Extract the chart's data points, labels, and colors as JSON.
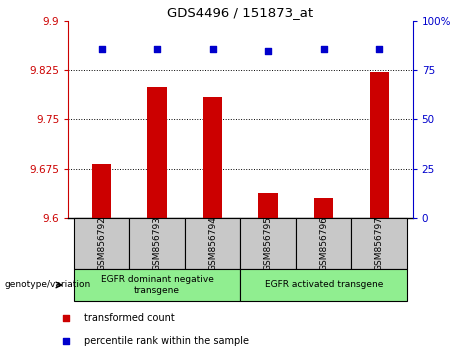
{
  "title": "GDS4496 / 151873_at",
  "samples": [
    "GSM856792",
    "GSM856793",
    "GSM856794",
    "GSM856795",
    "GSM856796",
    "GSM856797"
  ],
  "bar_values": [
    9.682,
    9.8,
    9.785,
    9.638,
    9.63,
    9.823
  ],
  "percentile_values": [
    86,
    86,
    86,
    85,
    86,
    86
  ],
  "ylim_left": [
    9.6,
    9.9
  ],
  "ylim_right": [
    0,
    100
  ],
  "yticks_left": [
    9.6,
    9.675,
    9.75,
    9.825,
    9.9
  ],
  "ytick_labels_left": [
    "9.6",
    "9.675",
    "9.75",
    "9.825",
    "9.9"
  ],
  "yticks_right": [
    0,
    25,
    50,
    75,
    100
  ],
  "ytick_labels_right": [
    "0",
    "25",
    "50",
    "75",
    "100%"
  ],
  "hlines": [
    9.675,
    9.75,
    9.825
  ],
  "bar_color": "#cc0000",
  "dot_color": "#0000cc",
  "left_axis_color": "#cc0000",
  "right_axis_color": "#0000cc",
  "group1_label": "EGFR dominant negative\ntransgene",
  "group2_label": "EGFR activated transgene",
  "genotype_label": "genotype/variation",
  "legend_bar_label": "transformed count",
  "legend_dot_label": "percentile rank within the sample",
  "plot_bg": "#ffffff",
  "group_bg": "#90EE90",
  "sample_bg": "#c8c8c8"
}
